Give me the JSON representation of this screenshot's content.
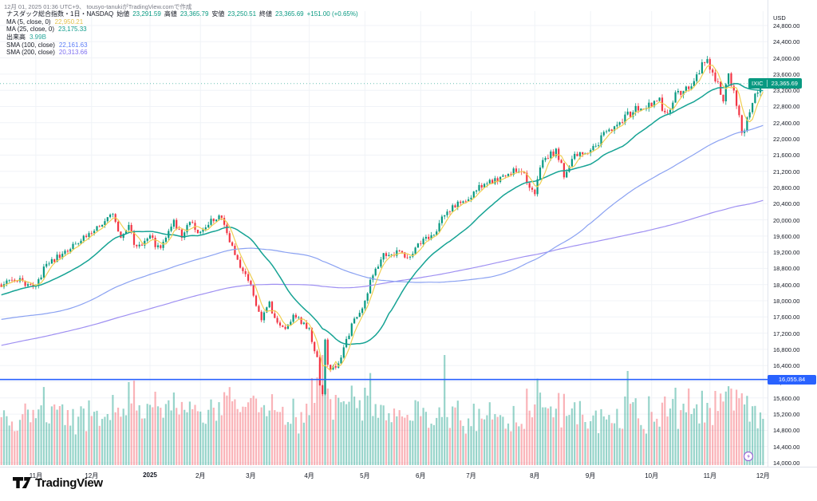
{
  "header": {
    "created_line": "12月 01, 2025 01:36 UTC+9、 tousyo-tanukiがTradingView.comで作成",
    "title": "ナスダック総合指数・1日・NASDAQ",
    "ohlc_color": "#089981",
    "ohlc": {
      "open_label": "始値",
      "open": "23,291.59",
      "high_label": "高値",
      "high": "23,365.79",
      "low_label": "安値",
      "low": "23,250.51",
      "close_label": "終値",
      "close": "23,365.69",
      "change": "+151.00 (+0.65%)"
    },
    "indicators": [
      {
        "label": "MA (5, close, 0)",
        "value": "22,950.21",
        "color": "#e3c24d"
      },
      {
        "label": "MA (25, close, 0)",
        "value": "23,175.33",
        "color": "#0f9d8c"
      },
      {
        "label": "出来高",
        "value": "3.99B",
        "color": "#26a69a"
      },
      {
        "label": "SMA (100, close)",
        "value": "22,161.63",
        "color": "#5b7cf7"
      },
      {
        "label": "SMA (200, close)",
        "value": "20,313.66",
        "color": "#7e6ff0"
      }
    ]
  },
  "axes": {
    "currency_label": "USD"
  },
  "badges": {
    "last_price": {
      "symbol": "IXIC",
      "price": "23,365.69",
      "color": "#089981"
    },
    "hline": {
      "price": "16,055.84",
      "color": "#2962ff"
    }
  },
  "logo": {
    "text": "TradingView"
  },
  "chart_data": {
    "type": "candlestick",
    "symbol": "NASDAQ Composite (IXIC)",
    "interval": "1日",
    "currency": "USD",
    "ylim": [
      13900,
      25150
    ],
    "grid": true,
    "price_ticks": [
      24800,
      24400,
      24000,
      23600,
      23200,
      22800,
      22400,
      22000,
      21600,
      21200,
      20800,
      20400,
      20000,
      19600,
      19200,
      18800,
      18400,
      18000,
      17600,
      17200,
      16800,
      16400,
      16000,
      15600,
      15200,
      14800,
      14400,
      14000
    ],
    "x_ticks": [
      [
        13,
        "11月",
        0
      ],
      [
        34,
        "12月",
        0
      ],
      [
        56,
        "2025",
        1
      ],
      [
        75,
        "2月",
        0
      ],
      [
        94,
        "3月",
        0
      ],
      [
        116,
        "4月",
        0
      ],
      [
        137,
        "5月",
        0
      ],
      [
        158,
        "6月",
        0
      ],
      [
        177,
        "7月",
        0
      ],
      [
        201,
        "8月",
        0
      ],
      [
        222,
        "9月",
        0
      ],
      [
        245,
        "10月",
        0
      ],
      [
        267,
        "11月",
        0
      ],
      [
        287,
        "12月",
        0
      ]
    ],
    "visible_days": 288,
    "history_days": 200,
    "trajectory": [
      [
        -200,
        15600
      ],
      [
        -170,
        16300
      ],
      [
        -140,
        15700
      ],
      [
        -110,
        17200
      ],
      [
        -80,
        17900
      ],
      [
        -62,
        16250
      ],
      [
        -55,
        17000
      ],
      [
        -40,
        17400
      ],
      [
        -25,
        17900
      ],
      [
        -10,
        18200
      ],
      [
        0,
        18400
      ],
      [
        6,
        18500
      ],
      [
        13,
        18350
      ],
      [
        17,
        18900
      ],
      [
        23,
        19150
      ],
      [
        30,
        19500
      ],
      [
        34,
        19650
      ],
      [
        42,
        20130
      ],
      [
        45,
        19550
      ],
      [
        48,
        19800
      ],
      [
        51,
        19300
      ],
      [
        56,
        19550
      ],
      [
        60,
        19250
      ],
      [
        65,
        19950
      ],
      [
        68,
        19600
      ],
      [
        71,
        19900
      ],
      [
        75,
        19700
      ],
      [
        78,
        19950
      ],
      [
        83,
        20060
      ],
      [
        87,
        19300
      ],
      [
        94,
        18350
      ],
      [
        98,
        17550
      ],
      [
        101,
        17900
      ],
      [
        104,
        17450
      ],
      [
        107,
        17250
      ],
      [
        110,
        17650
      ],
      [
        116,
        17300
      ],
      [
        119,
        16550
      ],
      [
        120,
        15900
      ],
      [
        121,
        15650
      ],
      [
        122,
        17100
      ],
      [
        123,
        16350
      ],
      [
        126,
        16300
      ],
      [
        129,
        16800
      ],
      [
        132,
        17400
      ],
      [
        137,
        17950
      ],
      [
        140,
        18700
      ],
      [
        144,
        19100
      ],
      [
        149,
        19200
      ],
      [
        153,
        19100
      ],
      [
        158,
        19430
      ],
      [
        162,
        19600
      ],
      [
        167,
        20100
      ],
      [
        171,
        20370
      ],
      [
        177,
        20600
      ],
      [
        182,
        20900
      ],
      [
        186,
        21000
      ],
      [
        191,
        21100
      ],
      [
        195,
        21250
      ],
      [
        201,
        20700
      ],
      [
        204,
        21450
      ],
      [
        209,
        21700
      ],
      [
        212,
        21120
      ],
      [
        216,
        21600
      ],
      [
        222,
        21700
      ],
      [
        227,
        22100
      ],
      [
        232,
        22350
      ],
      [
        236,
        22600
      ],
      [
        241,
        22790
      ],
      [
        245,
        22850
      ],
      [
        248,
        23000
      ],
      [
        250,
        22560
      ],
      [
        254,
        23050
      ],
      [
        259,
        23250
      ],
      [
        263,
        23700
      ],
      [
        266,
        23960
      ],
      [
        269,
        23500
      ],
      [
        272,
        23000
      ],
      [
        274,
        23530
      ],
      [
        277,
        22900
      ],
      [
        279,
        22100
      ],
      [
        282,
        22700
      ],
      [
        284,
        23100
      ],
      [
        286,
        23214
      ],
      [
        287,
        23365.69
      ]
    ],
    "last_candle": {
      "open": 23291.59,
      "high": 23365.79,
      "low": 23250.51,
      "close": 23365.69
    },
    "last_volume_label": "3.99B",
    "hline_price": 16055.84,
    "ma_overlays": [
      {
        "name": "SMA200",
        "window": 200,
        "color": "#9f90f2",
        "width": 1.2
      },
      {
        "name": "SMA100",
        "window": 100,
        "color": "#8ba2f2",
        "width": 1.2
      },
      {
        "name": "MA25",
        "window": 25,
        "color": "#16a394",
        "width": 1.5
      },
      {
        "name": "MA5",
        "window": 5,
        "color": "#f0cf52",
        "width": 1.2
      }
    ],
    "volume_spikes": [
      [
        42,
        88
      ],
      [
        48,
        104
      ],
      [
        58,
        92
      ],
      [
        87,
        80
      ],
      [
        94,
        84
      ],
      [
        119,
        110
      ],
      [
        120,
        126
      ],
      [
        121,
        138
      ],
      [
        122,
        120
      ],
      [
        123,
        96
      ],
      [
        126,
        88
      ],
      [
        167,
        138
      ],
      [
        201,
        76
      ],
      [
        236,
        118
      ],
      [
        250,
        86
      ],
      [
        259,
        96
      ],
      [
        266,
        78
      ],
      [
        279,
        90
      ],
      [
        287,
        58
      ]
    ],
    "colors": {
      "up": "#089981",
      "down": "#f23645",
      "vol_up": "rgba(8,153,129,0.42)",
      "vol_down": "rgba(242,54,69,0.38)",
      "grid": "#f0f3f7",
      "hline": "#2962ff",
      "marker": "#9c6ad6"
    }
  }
}
